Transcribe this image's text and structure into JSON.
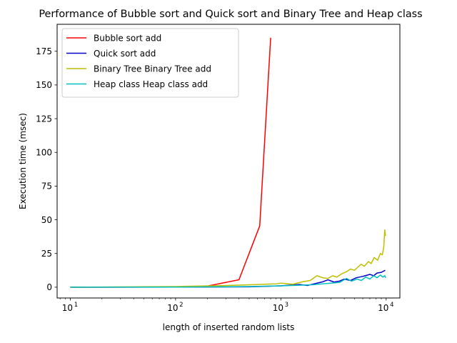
{
  "chart_data": {
    "type": "line",
    "title": "Performance of Bubble sort and Quick sort and Binary Tree and Heap class",
    "xlabel": "length of inserted random lists",
    "ylabel": "Execution time (msec)",
    "xscale": "log",
    "xlim": [
      7.5,
      13500
    ],
    "ylim": [
      -8,
      195
    ],
    "x_ticks": [
      {
        "value": 10,
        "base": "10",
        "exp": "1"
      },
      {
        "value": 100,
        "base": "10",
        "exp": "2"
      },
      {
        "value": 1000,
        "base": "10",
        "exp": "3"
      },
      {
        "value": 10000,
        "base": "10",
        "exp": "4"
      }
    ],
    "y_ticks": [
      0,
      25,
      50,
      75,
      100,
      125,
      150,
      175
    ],
    "y_tick_labels": [
      "0",
      "25",
      "50",
      "75",
      "100",
      "125",
      "150",
      "175"
    ],
    "grid": false,
    "legend_position": "top-left",
    "series": [
      {
        "name": "Bubble sort add",
        "color": "#ff0000",
        "points": [
          [
            10,
            0.0
          ],
          [
            20,
            0.0
          ],
          [
            50,
            0.1
          ],
          [
            100,
            0.2
          ],
          [
            200,
            0.8
          ],
          [
            400,
            5.5
          ],
          [
            630,
            45.5
          ],
          [
            800,
            185.0
          ]
        ]
      },
      {
        "name": "Quick sort add",
        "color": "#0000cc",
        "points": [
          [
            10,
            0.0
          ],
          [
            100,
            0.05
          ],
          [
            500,
            0.3
          ],
          [
            1000,
            1.0
          ],
          [
            1500,
            2.0
          ],
          [
            1800,
            1.3
          ],
          [
            2200,
            3.0
          ],
          [
            2500,
            4.0
          ],
          [
            2800,
            5.5
          ],
          [
            3200,
            3.8
          ],
          [
            3600,
            4.5
          ],
          [
            4000,
            6.0
          ],
          [
            4600,
            5.0
          ],
          [
            5200,
            7.0
          ],
          [
            6000,
            8.0
          ],
          [
            7000,
            9.5
          ],
          [
            7600,
            8.5
          ],
          [
            8200,
            10.5
          ],
          [
            9000,
            11.0
          ],
          [
            9500,
            12.0
          ],
          [
            9800,
            12.5
          ]
        ]
      },
      {
        "name": "Binary Tree Binary Tree add",
        "color": "#bfbf00",
        "points": [
          [
            10,
            0.0
          ],
          [
            100,
            0.5
          ],
          [
            300,
            1.2
          ],
          [
            600,
            2.0
          ],
          [
            900,
            2.5
          ],
          [
            1000,
            3.0
          ],
          [
            1300,
            2.2
          ],
          [
            1600,
            4.0
          ],
          [
            1900,
            5.0
          ],
          [
            2200,
            8.5
          ],
          [
            2500,
            7.0
          ],
          [
            2800,
            6.5
          ],
          [
            3100,
            8.5
          ],
          [
            3400,
            7.5
          ],
          [
            3800,
            10.0
          ],
          [
            4200,
            11.5
          ],
          [
            4600,
            13.5
          ],
          [
            5000,
            12.5
          ],
          [
            5400,
            15.0
          ],
          [
            5800,
            17.0
          ],
          [
            6200,
            15.5
          ],
          [
            6800,
            19.0
          ],
          [
            7200,
            17.5
          ],
          [
            7700,
            22.0
          ],
          [
            8300,
            20.0
          ],
          [
            8800,
            25.0
          ],
          [
            9200,
            24.0
          ],
          [
            9500,
            30.0
          ],
          [
            9700,
            42.5
          ],
          [
            9850,
            38.0
          ]
        ]
      },
      {
        "name": "Heap class Heap class add",
        "color": "#00bfbf",
        "points": [
          [
            10,
            0.0
          ],
          [
            100,
            0.05
          ],
          [
            500,
            0.5
          ],
          [
            1000,
            1.0
          ],
          [
            1500,
            1.5
          ],
          [
            2000,
            1.8
          ],
          [
            2500,
            2.5
          ],
          [
            3000,
            3.0
          ],
          [
            3600,
            3.5
          ],
          [
            4200,
            6.5
          ],
          [
            4700,
            4.5
          ],
          [
            5300,
            6.0
          ],
          [
            5800,
            5.0
          ],
          [
            6400,
            7.5
          ],
          [
            7000,
            6.0
          ],
          [
            7600,
            8.5
          ],
          [
            8200,
            7.0
          ],
          [
            8800,
            9.0
          ],
          [
            9300,
            7.5
          ],
          [
            9700,
            8.5
          ],
          [
            9900,
            7.0
          ]
        ]
      }
    ]
  }
}
